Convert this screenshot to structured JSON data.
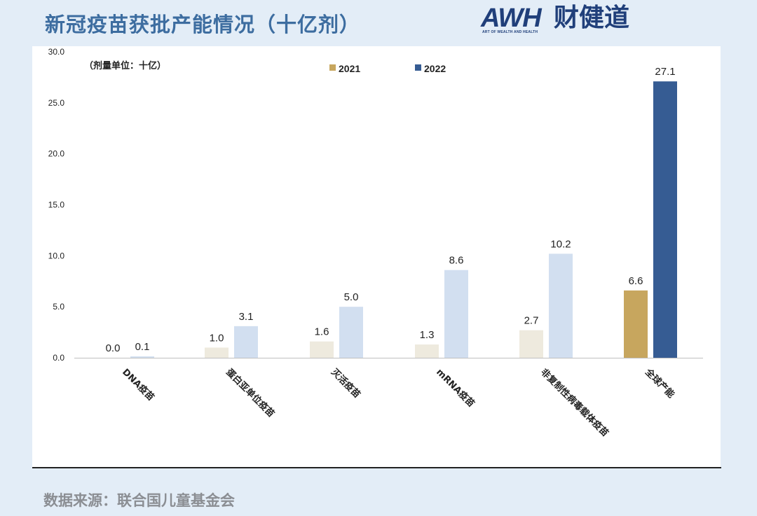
{
  "header": {
    "title": "新冠疫苗获批产能情况（十亿剂）",
    "brand_mark": "AWH",
    "brand_cn": "财健道",
    "brand_sub": "ART OF WEALTH AND HEALTH"
  },
  "source": "数据来源：联合国儿童基金会",
  "chart_data": {
    "type": "bar",
    "title": "新冠疫苗获批产能情况（十亿剂）",
    "unit_note": "（剂量单位：十亿）",
    "ylim": [
      0,
      30
    ],
    "yticks": [
      "0.0",
      "5.0",
      "10.0",
      "15.0",
      "20.0",
      "25.0",
      "30.0"
    ],
    "categories": [
      "DNA疫苗",
      "蛋白亚单位疫苗",
      "灭活疫苗",
      "mRNA疫苗",
      "非复制性病毒载体疫苗",
      "全球产能"
    ],
    "series": [
      {
        "name": "2021",
        "values": [
          0.0,
          1.0,
          1.6,
          1.3,
          2.7,
          6.6
        ],
        "labels": [
          "0.0",
          "1.0",
          "1.6",
          "1.3",
          "2.7",
          "6.6"
        ],
        "color": "#eeeade",
        "highlight_color": "#c7a65e"
      },
      {
        "name": "2022",
        "values": [
          0.1,
          3.1,
          5.0,
          8.6,
          10.2,
          27.1
        ],
        "labels": [
          "0.1",
          "3.1",
          "5.0",
          "8.6",
          "10.2",
          "27.1"
        ],
        "color": "#d2dff0",
        "highlight_color": "#365c93"
      }
    ],
    "legend": [
      {
        "label": "2021",
        "color": "#c7a65e"
      },
      {
        "label": "2022",
        "color": "#365c93"
      }
    ],
    "legend_position": "top"
  }
}
